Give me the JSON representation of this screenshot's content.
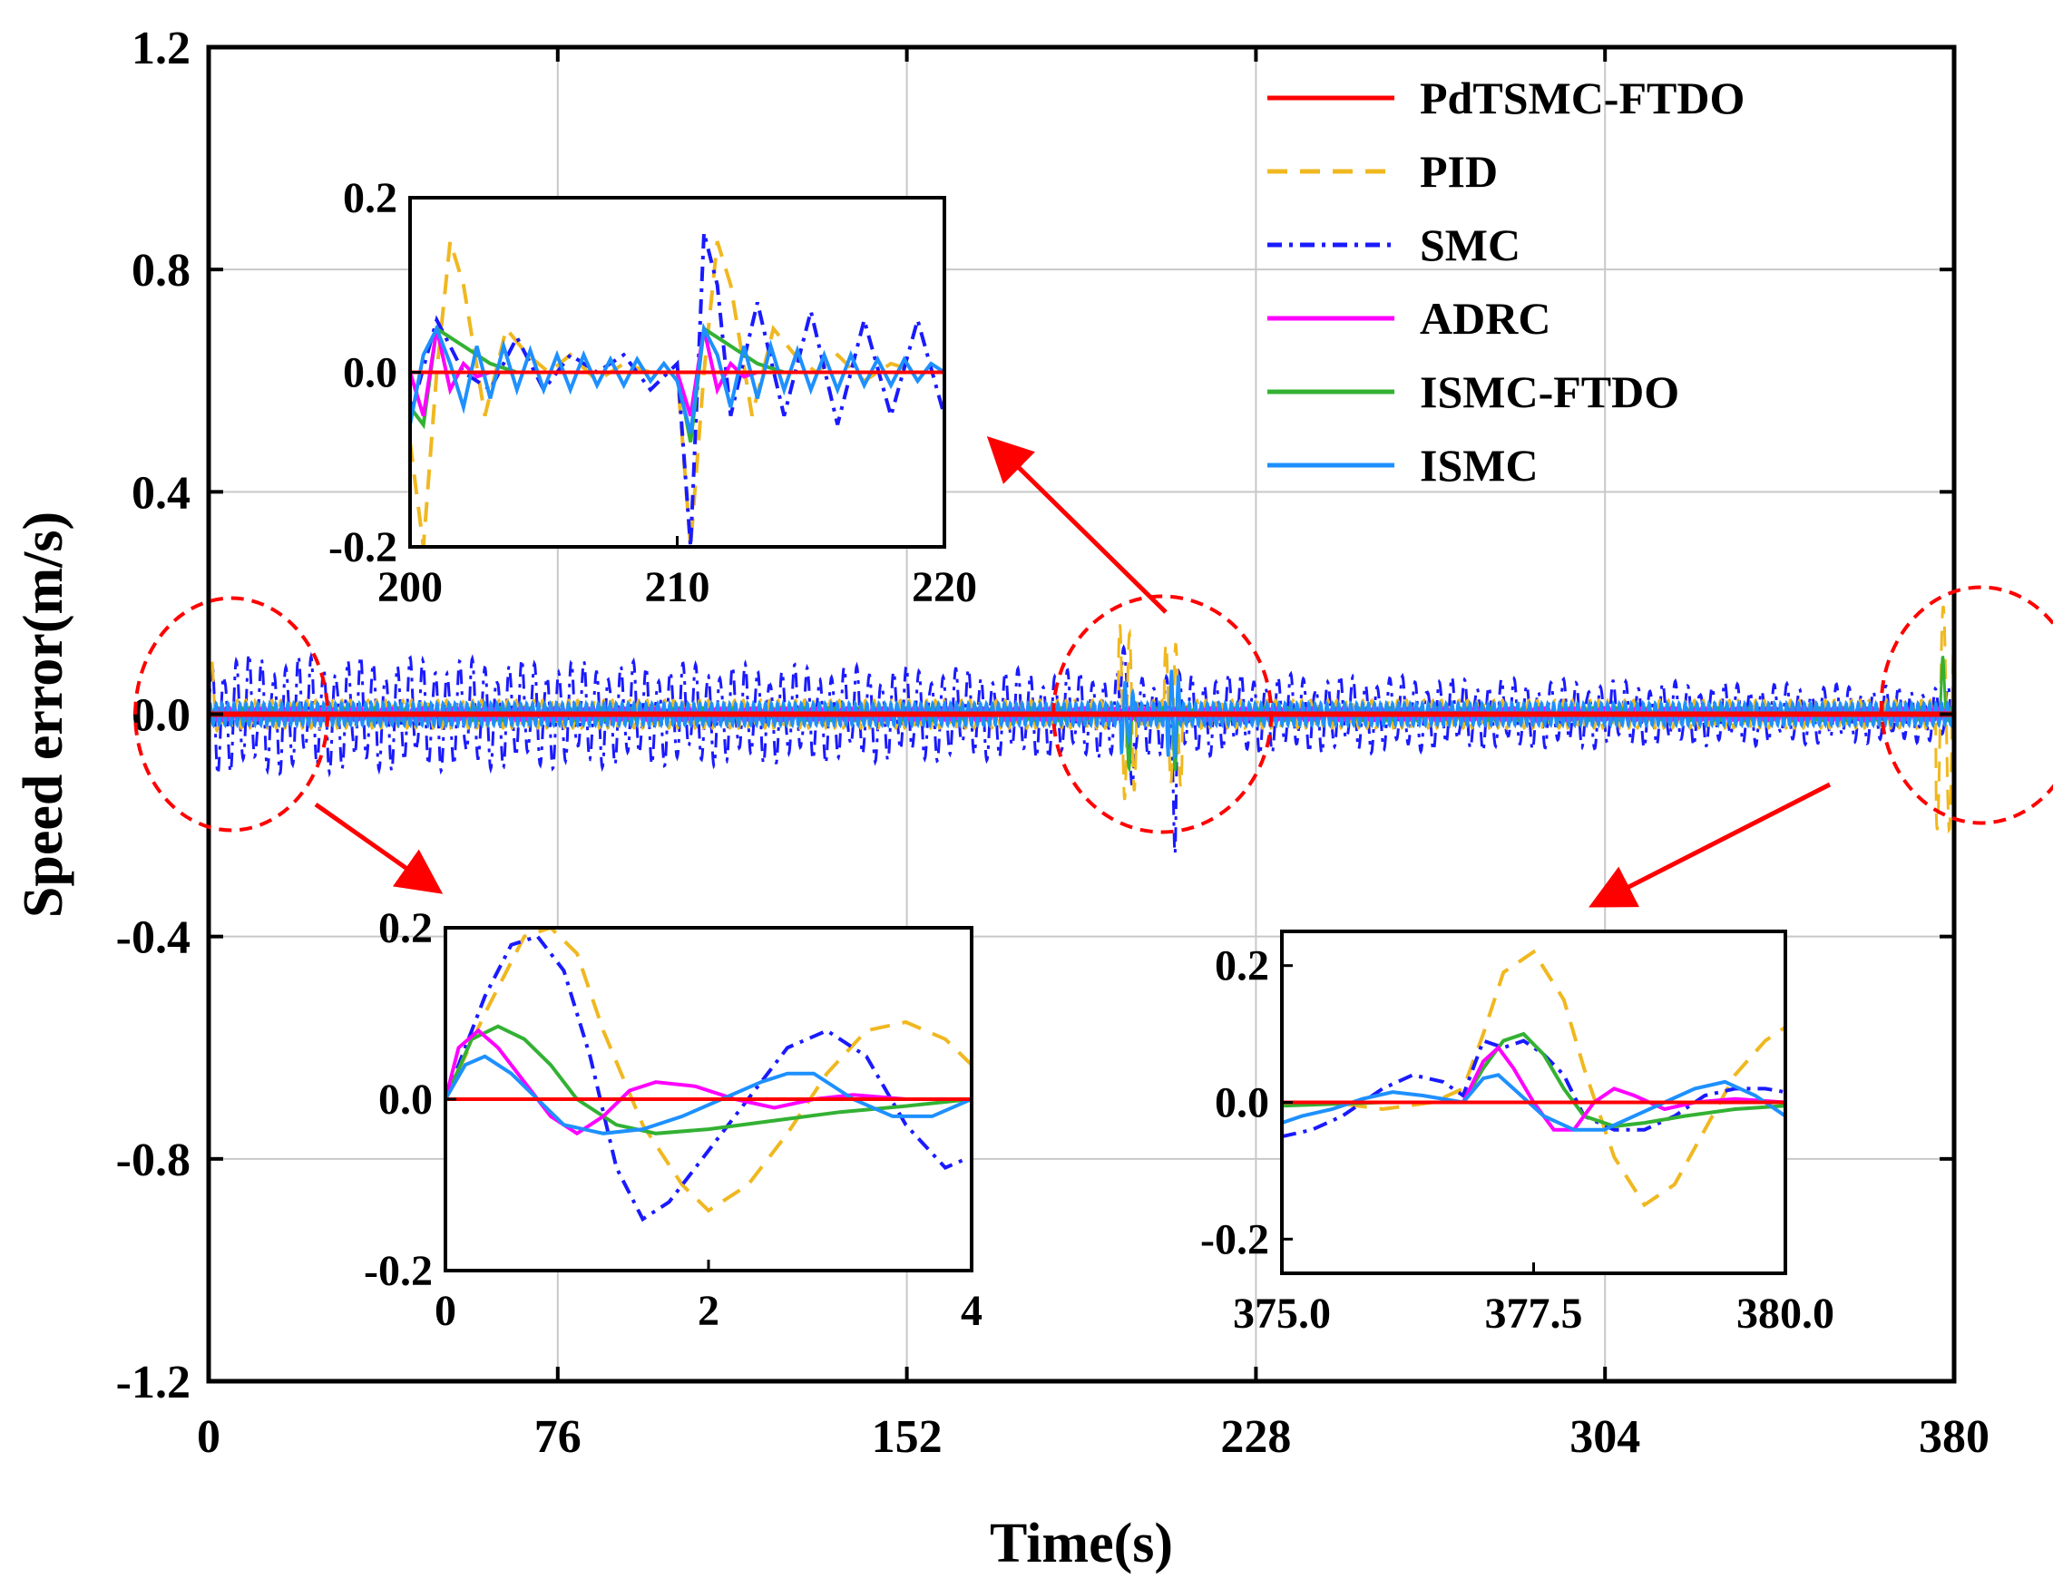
{
  "chart_data": [
    {
      "type": "line",
      "role": "main",
      "title": "",
      "xlabel": "Time(s)",
      "ylabel": "Speed error(m/s)",
      "xlim": [
        0,
        380
      ],
      "ylim": [
        -1.2,
        1.2
      ],
      "x_ticks": [
        0,
        76,
        152,
        228,
        304,
        380
      ],
      "y_ticks": [
        1.2,
        0.8,
        0.4,
        0.0,
        -0.4,
        -0.8,
        -1.2
      ],
      "x_tick_labels": [
        "0",
        "76",
        "152",
        "228",
        "304",
        "380"
      ],
      "y_tick_labels": [
        "1.2",
        "0.8",
        "0.4",
        "0.0",
        "-0.4",
        "-0.8",
        "-1.2"
      ],
      "grid": true,
      "legend_position": "top-right",
      "series": [
        {
          "name": "PdTSMC-FTDO",
          "color": "#ff0000",
          "style": "solid"
        },
        {
          "name": "PID",
          "color": "#f0b820",
          "style": "dash"
        },
        {
          "name": "SMC",
          "color": "#1a1aff",
          "style": "dashdot"
        },
        {
          "name": "ADRC",
          "color": "#ff00ff",
          "style": "solid"
        },
        {
          "name": "ISMC-FTDO",
          "color": "#33b133",
          "style": "solid"
        },
        {
          "name": "ISMC",
          "color": "#1e90ff",
          "style": "solid"
        }
      ],
      "behavior": {
        "SMC_oscillation_amplitude": [
          0.11,
          0.05
        ],
        "PID_oscillation_amplitude": 0.025,
        "ISMC_oscillation_amplitude": 0.02,
        "ISMC_FTDO_amplitude": 0.012,
        "ADRC_amplitude": 0.01,
        "PdTSMC_FTDO_amplitude": 0.0,
        "disturbance_times": [
          0,
          200,
          210,
          377
        ]
      },
      "zoom_regions": [
        {
          "center": [
            2,
            0.0
          ],
          "target_inset": "start"
        },
        {
          "center": [
            210,
            0.0
          ],
          "target_inset": "middle"
        },
        {
          "center": [
            377,
            0.0
          ],
          "target_inset": "end"
        }
      ]
    },
    {
      "type": "line",
      "role": "inset",
      "id": "middle",
      "xlim": [
        200,
        220
      ],
      "ylim": [
        -0.2,
        0.2
      ],
      "x_tick_labels": [
        "200",
        "210",
        "220"
      ],
      "y_tick_labels": [
        "0.2",
        "0.0",
        "-0.2"
      ],
      "series": [
        {
          "name": "PdTSMC-FTDO",
          "x": [
            200,
            220
          ],
          "y": [
            0,
            0
          ]
        },
        {
          "name": "PID",
          "x": [
            200.0,
            200.5,
            201.0,
            201.5,
            202.0,
            202.8,
            203.6,
            204.4,
            205.2,
            206.0,
            207.0,
            208.0,
            209.0,
            210.0,
            210.5,
            211.0,
            211.5,
            212.0,
            212.8,
            213.6,
            214.4,
            215.2,
            216.0,
            217.0,
            218.0,
            219.0,
            220.0
          ],
          "y": [
            -0.08,
            -0.2,
            0.0,
            0.15,
            0.1,
            -0.05,
            0.05,
            0.02,
            0.0,
            0.02,
            -0.01,
            0.01,
            0.0,
            0.0,
            -0.2,
            0.0,
            0.15,
            0.1,
            -0.05,
            0.05,
            0.02,
            0.0,
            0.02,
            -0.01,
            0.01,
            0.0,
            0.0
          ]
        },
        {
          "name": "SMC",
          "x": [
            200.0,
            201.0,
            202.0,
            203.0,
            204.0,
            205.0,
            206.0,
            207.0,
            208.0,
            209.0,
            210.0,
            210.5,
            211.0,
            211.5,
            212.0,
            213.0,
            214.0,
            215.0,
            216.0,
            217.0,
            218.0,
            219.0,
            220.0
          ],
          "y": [
            -0.05,
            0.06,
            0.0,
            -0.02,
            0.04,
            -0.02,
            0.02,
            0.0,
            0.02,
            -0.02,
            0.01,
            -0.2,
            0.16,
            0.1,
            -0.05,
            0.08,
            -0.05,
            0.07,
            -0.06,
            0.06,
            -0.05,
            0.06,
            -0.05
          ]
        },
        {
          "name": "ADRC",
          "x": [
            200.0,
            200.5,
            201.0,
            201.5,
            202.0,
            202.5,
            203.0,
            204.0,
            205.0,
            210.0,
            210.5,
            211.0,
            211.5,
            212.0,
            212.5,
            213.0,
            214.0,
            215.0,
            220.0
          ],
          "y": [
            0.0,
            -0.05,
            0.05,
            -0.02,
            0.01,
            -0.005,
            0.0,
            0.0,
            0.0,
            0.0,
            -0.05,
            0.05,
            -0.02,
            0.01,
            -0.005,
            0.0,
            0.0,
            0.0,
            0.0
          ]
        },
        {
          "name": "ISMC-FTDO",
          "x": [
            200.0,
            200.5,
            201.0,
            202.0,
            203.0,
            204.0,
            205.0,
            210.0,
            210.5,
            211.0,
            212.0,
            213.0,
            214.0,
            215.0,
            220.0
          ],
          "y": [
            -0.04,
            -0.06,
            0.05,
            0.03,
            0.01,
            0.0,
            0.0,
            0.0,
            -0.08,
            0.05,
            0.03,
            0.01,
            0.0,
            0.0,
            0.0
          ]
        },
        {
          "name": "ISMC",
          "x": [
            200.0,
            200.5,
            201.0,
            201.5,
            202.0,
            202.5,
            203.0,
            203.5,
            204.0,
            204.5,
            205.0,
            205.5,
            206.0,
            206.5,
            207.0,
            207.5,
            208.0,
            208.5,
            209.0,
            209.5,
            210.0,
            210.5,
            211.0,
            211.5,
            212.0,
            212.5,
            213.0,
            213.5,
            214.0,
            214.5,
            215.0,
            215.5,
            216.0,
            216.5,
            217.0,
            217.5,
            218.0,
            218.5,
            219.0,
            219.5,
            220.0
          ],
          "y": [
            -0.06,
            0.02,
            0.05,
            0.01,
            -0.04,
            0.03,
            -0.03,
            0.03,
            -0.02,
            0.025,
            -0.02,
            0.02,
            -0.02,
            0.02,
            -0.015,
            0.015,
            -0.015,
            0.015,
            -0.01,
            0.01,
            -0.01,
            -0.07,
            0.05,
            0.02,
            -0.04,
            0.03,
            -0.03,
            0.03,
            -0.02,
            0.025,
            -0.02,
            0.02,
            -0.02,
            0.02,
            -0.015,
            0.015,
            -0.015,
            0.015,
            -0.01,
            0.01,
            0.0
          ]
        }
      ]
    },
    {
      "type": "line",
      "role": "inset",
      "id": "start",
      "xlim": [
        0,
        4
      ],
      "ylim": [
        -0.2,
        0.2
      ],
      "x_tick_labels": [
        "0",
        "2",
        "4"
      ],
      "y_tick_labels": [
        "0.2",
        "0.0",
        "-0.2"
      ],
      "series": [
        {
          "name": "PdTSMC-FTDO",
          "x": [
            0,
            4
          ],
          "y": [
            0,
            0
          ]
        },
        {
          "name": "PID",
          "x": [
            0.0,
            0.3,
            0.6,
            0.8,
            1.0,
            1.2,
            1.5,
            1.8,
            2.0,
            2.3,
            2.6,
            2.9,
            3.2,
            3.5,
            3.8,
            4.0
          ],
          "y": [
            0.0,
            0.1,
            0.19,
            0.2,
            0.17,
            0.08,
            -0.03,
            -0.1,
            -0.13,
            -0.1,
            -0.04,
            0.03,
            0.08,
            0.09,
            0.07,
            0.04
          ]
        },
        {
          "name": "SMC",
          "x": [
            0.0,
            0.3,
            0.5,
            0.7,
            0.9,
            1.1,
            1.3,
            1.5,
            1.7,
            2.0,
            2.3,
            2.6,
            2.9,
            3.2,
            3.5,
            3.8,
            3.95
          ],
          "y": [
            0.0,
            0.12,
            0.18,
            0.19,
            0.15,
            0.05,
            -0.08,
            -0.14,
            -0.12,
            -0.06,
            0.0,
            0.06,
            0.08,
            0.05,
            -0.03,
            -0.08,
            -0.07
          ]
        },
        {
          "name": "ADRC",
          "x": [
            0.0,
            0.1,
            0.25,
            0.4,
            0.6,
            0.8,
            1.0,
            1.2,
            1.4,
            1.6,
            1.9,
            2.2,
            2.5,
            2.8,
            3.1,
            3.5,
            4.0
          ],
          "y": [
            0.0,
            0.06,
            0.08,
            0.06,
            0.02,
            -0.02,
            -0.04,
            -0.02,
            0.01,
            0.02,
            0.015,
            0.0,
            -0.01,
            0.0,
            0.005,
            0.0,
            0.0
          ]
        },
        {
          "name": "ISMC-FTDO",
          "x": [
            0.0,
            0.2,
            0.4,
            0.6,
            0.8,
            1.0,
            1.3,
            1.6,
            2.0,
            2.5,
            3.0,
            3.5,
            4.0
          ],
          "y": [
            0.0,
            0.07,
            0.085,
            0.07,
            0.04,
            0.0,
            -0.03,
            -0.04,
            -0.035,
            -0.025,
            -0.015,
            -0.008,
            0.0
          ]
        },
        {
          "name": "ISMC",
          "x": [
            0.0,
            0.15,
            0.3,
            0.5,
            0.7,
            0.9,
            1.2,
            1.5,
            1.8,
            2.1,
            2.4,
            2.6,
            2.8,
            3.1,
            3.4,
            3.7,
            4.0
          ],
          "y": [
            0.0,
            0.04,
            0.05,
            0.03,
            0.0,
            -0.03,
            -0.04,
            -0.035,
            -0.02,
            0.0,
            0.02,
            0.03,
            0.03,
            0.0,
            -0.02,
            -0.02,
            0.0
          ]
        }
      ]
    },
    {
      "type": "line",
      "role": "inset",
      "id": "end",
      "xlim": [
        375,
        380
      ],
      "ylim": [
        -0.25,
        0.25
      ],
      "x_tick_labels": [
        "375.0",
        "377.5",
        "380.0"
      ],
      "y_tick_labels": [
        "0.2",
        "0.0",
        "-0.2"
      ],
      "series": [
        {
          "name": "PdTSMC-FTDO",
          "x": [
            375,
            380
          ],
          "y": [
            0,
            0
          ]
        },
        {
          "name": "PID",
          "x": [
            375.0,
            375.5,
            376.0,
            376.5,
            376.8,
            377.0,
            377.2,
            377.5,
            377.8,
            378.0,
            378.3,
            378.6,
            378.9,
            379.2,
            379.5,
            379.8,
            380.0
          ],
          "y": [
            0.0,
            0.0,
            -0.01,
            0.0,
            0.02,
            0.1,
            0.19,
            0.22,
            0.15,
            0.05,
            -0.08,
            -0.15,
            -0.12,
            -0.04,
            0.04,
            0.09,
            0.11
          ]
        },
        {
          "name": "SMC",
          "x": [
            375.0,
            375.3,
            375.6,
            376.0,
            376.3,
            376.6,
            376.8,
            377.0,
            377.2,
            377.4,
            377.6,
            377.8,
            378.0,
            378.3,
            378.6,
            378.9,
            379.2,
            379.5,
            379.8,
            380.0
          ],
          "y": [
            -0.05,
            -0.04,
            -0.02,
            0.02,
            0.04,
            0.03,
            0.01,
            0.09,
            0.08,
            0.09,
            0.07,
            0.04,
            -0.02,
            -0.04,
            -0.04,
            -0.02,
            0.01,
            0.02,
            0.02,
            0.015
          ]
        },
        {
          "name": "ADRC",
          "x": [
            375.0,
            376.5,
            376.8,
            377.0,
            377.15,
            377.3,
            377.5,
            377.7,
            377.9,
            378.1,
            378.3,
            378.5,
            378.8,
            379.1,
            379.5,
            380.0
          ],
          "y": [
            0.0,
            0.0,
            0.0,
            0.06,
            0.08,
            0.05,
            0.0,
            -0.04,
            -0.04,
            0.0,
            0.02,
            0.01,
            -0.01,
            0.0,
            0.005,
            0.0
          ]
        },
        {
          "name": "ISMC-FTDO",
          "x": [
            375.0,
            376.0,
            376.8,
            377.0,
            377.2,
            377.4,
            377.6,
            377.8,
            378.0,
            378.3,
            378.6,
            379.0,
            379.5,
            380.0
          ],
          "y": [
            -0.005,
            0.0,
            0.0,
            0.05,
            0.09,
            0.1,
            0.07,
            0.02,
            -0.02,
            -0.035,
            -0.03,
            -0.02,
            -0.01,
            -0.005
          ]
        },
        {
          "name": "ISMC",
          "x": [
            375.0,
            375.2,
            375.5,
            375.8,
            376.1,
            376.4,
            376.8,
            377.0,
            377.15,
            377.3,
            377.6,
            377.9,
            378.2,
            378.5,
            378.8,
            379.1,
            379.4,
            379.7,
            380.0
          ],
          "y": [
            -0.03,
            -0.02,
            -0.01,
            0.005,
            0.015,
            0.01,
            0.0,
            0.035,
            0.04,
            0.02,
            -0.02,
            -0.04,
            -0.04,
            -0.02,
            0.0,
            0.02,
            0.03,
            0.01,
            -0.02
          ]
        }
      ]
    }
  ],
  "labels": {
    "xlabel": "Time(s)",
    "ylabel": "Speed error(m/s)"
  },
  "colors": {
    "red": "#ff0000",
    "zoom_circle": "#ff0000",
    "grid": "#c8c8c8"
  }
}
